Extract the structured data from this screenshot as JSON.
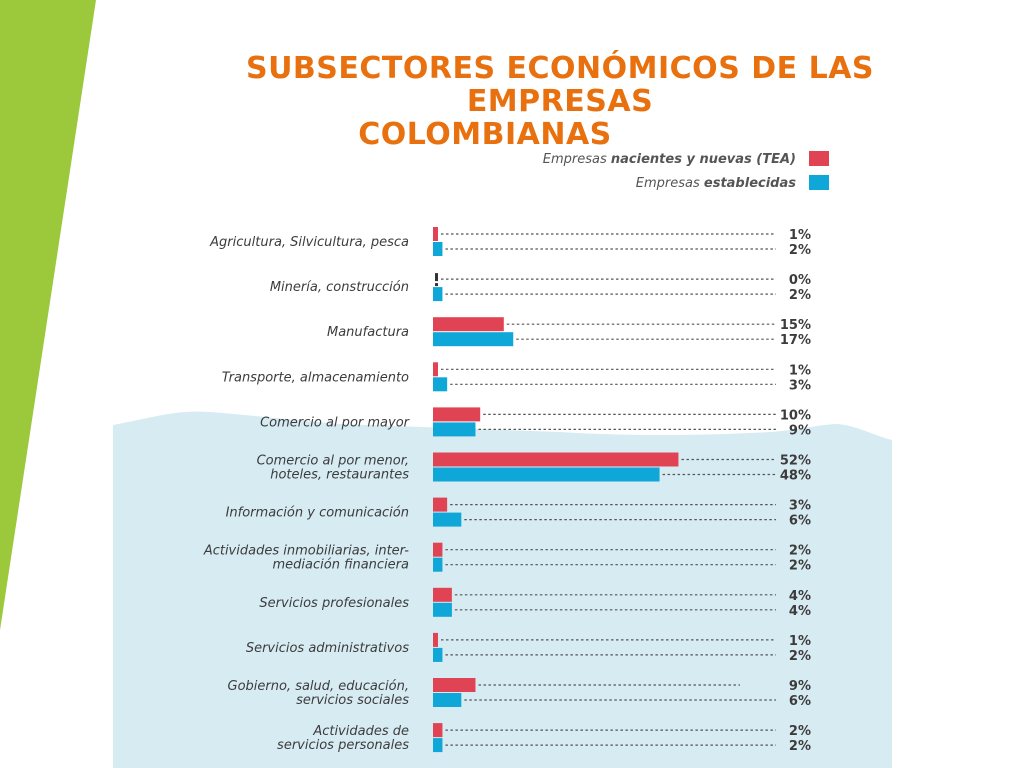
{
  "title": {
    "line1": "SUBSECTORES ECONÓMICOS DE LAS EMPRESAS",
    "line2": "COLOMBIANAS"
  },
  "colors": {
    "accent_green": "#9cc83c",
    "title_orange": "#e8700e",
    "series_red": "#e04454",
    "series_blue": "#0fa6d8",
    "background_area": "#d7ebf3"
  },
  "chart_data": {
    "type": "bar",
    "orientation": "horizontal",
    "categories": [
      "Agricultura, Silvicultura, pesca",
      "Minería, construcción",
      "Manufactura",
      "Transporte, almacenamiento",
      "Comercio al por mayor",
      "Comercio al por menor,\nhoteles, restaurantes",
      "Información y comunicación",
      "Actividades inmobiliarias, inter-\nmediación financiera",
      "Servicios profesionales",
      "Servicios administrativos",
      "Gobierno, salud, educación,\nservicios sociales",
      "Actividades de\nservicios personales"
    ],
    "series": [
      {
        "name": "Empresas nacientes y nuevas (TEA)",
        "legend_parts": [
          "Empresas ",
          "nacientes y nuevas (TEA)"
        ],
        "color": "#e04454",
        "values": [
          1,
          0,
          15,
          1,
          10,
          52,
          3,
          2,
          4,
          1,
          9,
          2
        ]
      },
      {
        "name": "Empresas establecidas",
        "legend_parts": [
          "Empresas ",
          "establecidas"
        ],
        "color": "#0fa6d8",
        "values": [
          2,
          2,
          17,
          3,
          9,
          48,
          6,
          2,
          4,
          2,
          6,
          2
        ]
      }
    ],
    "value_suffix": "%",
    "legend_position": "top-right",
    "grid": false
  }
}
